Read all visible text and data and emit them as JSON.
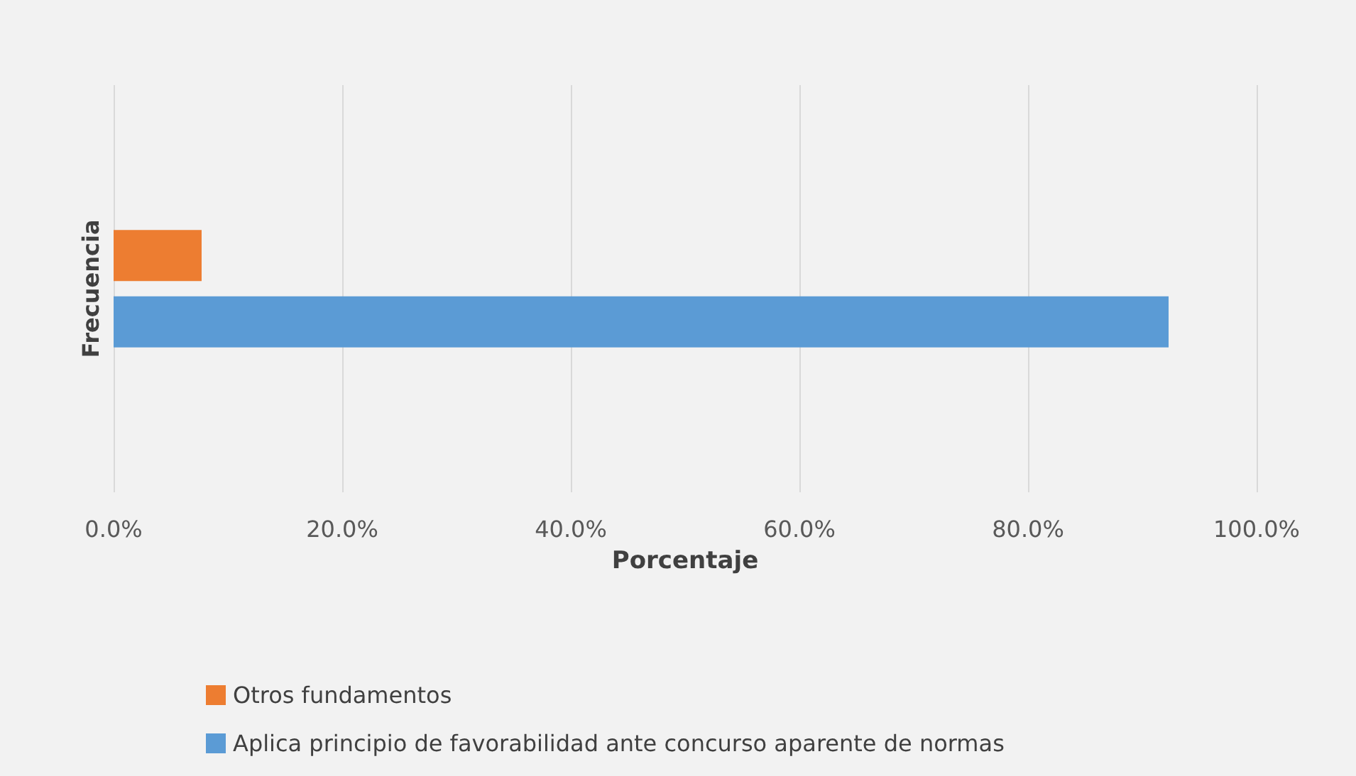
{
  "chart_data": {
    "type": "bar",
    "orientation": "horizontal",
    "categories": [
      "Frecuencia"
    ],
    "series": [
      {
        "name": "Otros fundamentos",
        "color": "#ed7d31",
        "values": [
          7.7
        ]
      },
      {
        "name": "Aplica principio de favorabilidad ante concurso aparente de normas",
        "color": "#5b9bd5",
        "values": [
          92.3
        ]
      }
    ],
    "xlabel": "Porcentaje",
    "xlim": [
      0,
      100
    ],
    "xticks": [
      {
        "value": 0,
        "label": "0.0%"
      },
      {
        "value": 20,
        "label": "20.0%"
      },
      {
        "value": 40,
        "label": "40.0%"
      },
      {
        "value": 60,
        "label": "60.0%"
      },
      {
        "value": 80,
        "label": "80.0%"
      },
      {
        "value": 100,
        "label": "100.0%"
      }
    ],
    "grid": "x",
    "legend": "bottom"
  }
}
